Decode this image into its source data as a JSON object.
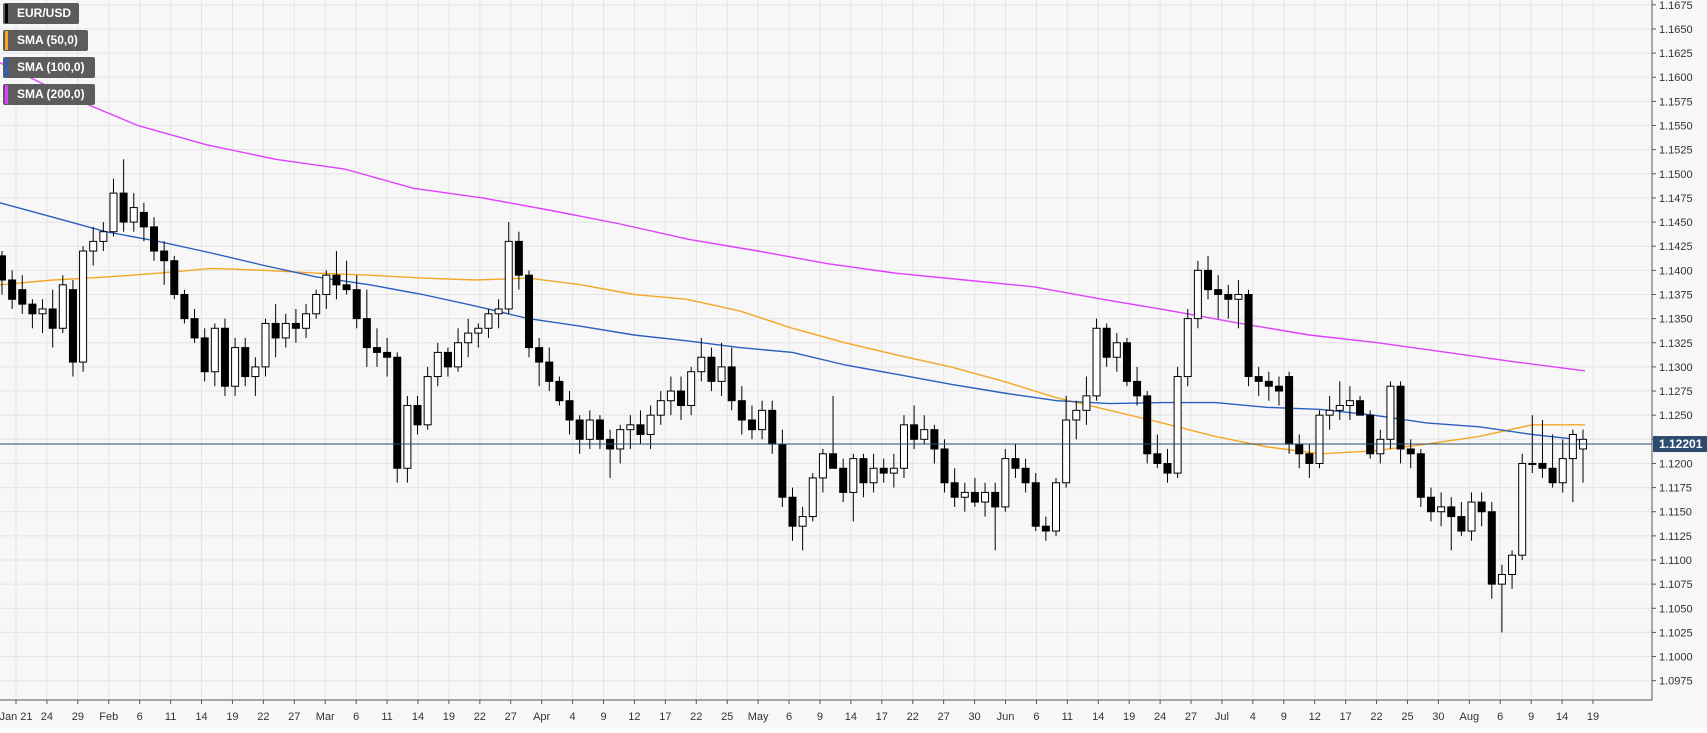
{
  "chart_data": {
    "type": "candlestick",
    "symbol": "EUR/USD",
    "price_label": "1.12201",
    "y_ticks": [
      "1.0975",
      "1.1000",
      "1.1025",
      "1.1050",
      "1.1075",
      "1.1100",
      "1.1125",
      "1.1150",
      "1.1175",
      "1.1200",
      "1.1225",
      "1.1250",
      "1.1275",
      "1.1300",
      "1.1325",
      "1.1350",
      "1.1375",
      "1.1400",
      "1.1425",
      "1.1450",
      "1.1475",
      "1.1500",
      "1.1525",
      "1.1550",
      "1.1575",
      "1.1600",
      "1.1625",
      "1.1650",
      "1.1675"
    ],
    "x_ticks": [
      "Jan 21",
      "24",
      "29",
      "Feb",
      "6",
      "11",
      "14",
      "19",
      "22",
      "27",
      "Mar",
      "6",
      "11",
      "14",
      "19",
      "22",
      "27",
      "Apr",
      "4",
      "9",
      "12",
      "17",
      "22",
      "25",
      "May",
      "6",
      "9",
      "14",
      "17",
      "22",
      "27",
      "30",
      "Jun",
      "6",
      "11",
      "14",
      "19",
      "24",
      "27",
      "Jul",
      "4",
      "9",
      "12",
      "17",
      "22",
      "25",
      "30",
      "Aug",
      "6",
      "9",
      "14",
      "19"
    ],
    "ylim": [
      1.0955,
      1.168
    ],
    "current_price": 1.12201,
    "grid": true,
    "legend": [
      {
        "label": "EUR/USD",
        "color": "#000000"
      },
      {
        "label": "SMA (50,0)",
        "color": "#f5a623"
      },
      {
        "label": "SMA (100,0)",
        "color": "#2a5fbf"
      },
      {
        "label": "SMA (200,0)",
        "color": "#e040fb"
      }
    ],
    "colors": {
      "up": "#ffffff",
      "down": "#000000",
      "sma50": "#f5a623",
      "sma100": "#2a5fbf",
      "sma200": "#e040fb",
      "price_line": "#2d4b6e"
    },
    "ohlc": [
      [
        1.1415,
        1.142,
        1.1375,
        1.139
      ],
      [
        1.139,
        1.14,
        1.136,
        1.137
      ],
      [
        1.138,
        1.1395,
        1.1355,
        1.1365
      ],
      [
        1.1365,
        1.137,
        1.134,
        1.1355
      ],
      [
        1.1355,
        1.137,
        1.1335,
        1.136
      ],
      [
        1.136,
        1.138,
        1.132,
        1.134
      ],
      [
        1.134,
        1.1395,
        1.1335,
        1.1385
      ],
      [
        1.138,
        1.139,
        1.129,
        1.1305
      ],
      [
        1.1305,
        1.1425,
        1.1295,
        1.142
      ],
      [
        1.142,
        1.1445,
        1.1405,
        1.143
      ],
      [
        1.143,
        1.145,
        1.142,
        1.144
      ],
      [
        1.144,
        1.1495,
        1.1435,
        1.148
      ],
      [
        1.148,
        1.1515,
        1.144,
        1.145
      ],
      [
        1.145,
        1.148,
        1.144,
        1.1465
      ],
      [
        1.146,
        1.147,
        1.143,
        1.1445
      ],
      [
        1.1445,
        1.1455,
        1.141,
        1.142
      ],
      [
        1.142,
        1.143,
        1.1385,
        1.141
      ],
      [
        1.141,
        1.1415,
        1.137,
        1.1375
      ],
      [
        1.1375,
        1.138,
        1.1345,
        1.135
      ],
      [
        1.135,
        1.136,
        1.1325,
        1.133
      ],
      [
        1.133,
        1.134,
        1.1285,
        1.1295
      ],
      [
        1.1295,
        1.1345,
        1.128,
        1.134
      ],
      [
        1.134,
        1.135,
        1.127,
        1.128
      ],
      [
        1.128,
        1.133,
        1.127,
        1.132
      ],
      [
        1.132,
        1.133,
        1.128,
        1.129
      ],
      [
        1.129,
        1.131,
        1.127,
        1.13
      ],
      [
        1.13,
        1.135,
        1.129,
        1.1345
      ],
      [
        1.1345,
        1.1365,
        1.131,
        1.133
      ],
      [
        1.133,
        1.1355,
        1.132,
        1.1345
      ],
      [
        1.1345,
        1.136,
        1.1325,
        1.134
      ],
      [
        1.134,
        1.1365,
        1.133,
        1.1355
      ],
      [
        1.1355,
        1.138,
        1.135,
        1.1375
      ],
      [
        1.1375,
        1.14,
        1.136,
        1.1395
      ],
      [
        1.1395,
        1.142,
        1.137,
        1.1385
      ],
      [
        1.1385,
        1.141,
        1.1375,
        1.138
      ],
      [
        1.138,
        1.1395,
        1.134,
        1.135
      ],
      [
        1.135,
        1.138,
        1.13,
        1.132
      ],
      [
        1.132,
        1.134,
        1.13,
        1.1315
      ],
      [
        1.1315,
        1.133,
        1.129,
        1.131
      ],
      [
        1.131,
        1.1315,
        1.118,
        1.1195
      ],
      [
        1.1195,
        1.127,
        1.118,
        1.126
      ],
      [
        1.126,
        1.127,
        1.123,
        1.124
      ],
      [
        1.124,
        1.13,
        1.1235,
        1.129
      ],
      [
        1.129,
        1.1325,
        1.128,
        1.1315
      ],
      [
        1.1315,
        1.132,
        1.129,
        1.13
      ],
      [
        1.13,
        1.134,
        1.1295,
        1.1325
      ],
      [
        1.1325,
        1.135,
        1.131,
        1.1335
      ],
      [
        1.1335,
        1.1345,
        1.132,
        1.134
      ],
      [
        1.134,
        1.136,
        1.133,
        1.1355
      ],
      [
        1.1355,
        1.137,
        1.134,
        1.136
      ],
      [
        1.136,
        1.145,
        1.1355,
        1.143
      ],
      [
        1.143,
        1.144,
        1.138,
        1.1395
      ],
      [
        1.1395,
        1.14,
        1.131,
        1.132
      ],
      [
        1.132,
        1.133,
        1.128,
        1.1305
      ],
      [
        1.1305,
        1.132,
        1.1275,
        1.1285
      ],
      [
        1.1285,
        1.129,
        1.126,
        1.1265
      ],
      [
        1.1265,
        1.1275,
        1.123,
        1.1245
      ],
      [
        1.1245,
        1.125,
        1.121,
        1.1225
      ],
      [
        1.1225,
        1.1255,
        1.1215,
        1.1245
      ],
      [
        1.1245,
        1.125,
        1.1215,
        1.1225
      ],
      [
        1.1225,
        1.1235,
        1.1185,
        1.1215
      ],
      [
        1.1215,
        1.124,
        1.12,
        1.1235
      ],
      [
        1.1235,
        1.125,
        1.1215,
        1.124
      ],
      [
        1.124,
        1.1255,
        1.122,
        1.123
      ],
      [
        1.123,
        1.126,
        1.1215,
        1.125
      ],
      [
        1.125,
        1.1275,
        1.124,
        1.1265
      ],
      [
        1.1265,
        1.129,
        1.125,
        1.1275
      ],
      [
        1.1275,
        1.129,
        1.1245,
        1.126
      ],
      [
        1.126,
        1.13,
        1.125,
        1.1295
      ],
      [
        1.1295,
        1.133,
        1.1285,
        1.131
      ],
      [
        1.131,
        1.132,
        1.1275,
        1.1285
      ],
      [
        1.1285,
        1.1325,
        1.127,
        1.13
      ],
      [
        1.13,
        1.132,
        1.1255,
        1.1265
      ],
      [
        1.1265,
        1.128,
        1.123,
        1.1245
      ],
      [
        1.1245,
        1.126,
        1.1225,
        1.1235
      ],
      [
        1.1235,
        1.1265,
        1.1225,
        1.1255
      ],
      [
        1.1255,
        1.1265,
        1.121,
        1.122
      ],
      [
        1.122,
        1.1235,
        1.1155,
        1.1165
      ],
      [
        1.1165,
        1.1175,
        1.112,
        1.1135
      ],
      [
        1.1135,
        1.1155,
        1.111,
        1.1145
      ],
      [
        1.1145,
        1.119,
        1.114,
        1.1185
      ],
      [
        1.1185,
        1.1215,
        1.117,
        1.121
      ],
      [
        1.121,
        1.127,
        1.1195,
        1.1195
      ],
      [
        1.1195,
        1.1205,
        1.116,
        1.117
      ],
      [
        1.117,
        1.121,
        1.114,
        1.1205
      ],
      [
        1.1205,
        1.121,
        1.1165,
        1.118
      ],
      [
        1.118,
        1.121,
        1.117,
        1.1195
      ],
      [
        1.1195,
        1.1205,
        1.118,
        1.119
      ],
      [
        1.119,
        1.121,
        1.1175,
        1.1195
      ],
      [
        1.1195,
        1.125,
        1.1185,
        1.124
      ],
      [
        1.124,
        1.126,
        1.1215,
        1.1225
      ],
      [
        1.1225,
        1.125,
        1.122,
        1.1235
      ],
      [
        1.1235,
        1.124,
        1.12,
        1.1215
      ],
      [
        1.1215,
        1.1225,
        1.117,
        1.118
      ],
      [
        1.118,
        1.1195,
        1.1155,
        1.1165
      ],
      [
        1.1165,
        1.118,
        1.115,
        1.117
      ],
      [
        1.117,
        1.1185,
        1.1155,
        1.116
      ],
      [
        1.116,
        1.118,
        1.1145,
        1.117
      ],
      [
        1.117,
        1.118,
        1.111,
        1.1155
      ],
      [
        1.1155,
        1.1215,
        1.115,
        1.1205
      ],
      [
        1.1205,
        1.122,
        1.1185,
        1.1195
      ],
      [
        1.1195,
        1.1205,
        1.117,
        1.118
      ],
      [
        1.118,
        1.119,
        1.113,
        1.1135
      ],
      [
        1.1135,
        1.1145,
        1.112,
        1.113
      ],
      [
        1.113,
        1.1185,
        1.1125,
        1.118
      ],
      [
        1.118,
        1.127,
        1.1175,
        1.1245
      ],
      [
        1.1245,
        1.1265,
        1.1225,
        1.1255
      ],
      [
        1.1255,
        1.129,
        1.124,
        1.127
      ],
      [
        1.127,
        1.135,
        1.1265,
        1.134
      ],
      [
        1.134,
        1.1345,
        1.13,
        1.131
      ],
      [
        1.131,
        1.1335,
        1.1295,
        1.1325
      ],
      [
        1.1325,
        1.133,
        1.128,
        1.1285
      ],
      [
        1.1285,
        1.13,
        1.126,
        1.127
      ],
      [
        1.127,
        1.1275,
        1.12,
        1.121
      ],
      [
        1.121,
        1.123,
        1.1195,
        1.12
      ],
      [
        1.12,
        1.1215,
        1.118,
        1.119
      ],
      [
        1.119,
        1.13,
        1.1185,
        1.129
      ],
      [
        1.129,
        1.136,
        1.128,
        1.135
      ],
      [
        1.135,
        1.141,
        1.134,
        1.14
      ],
      [
        1.14,
        1.1415,
        1.137,
        1.138
      ],
      [
        1.138,
        1.1395,
        1.135,
        1.1375
      ],
      [
        1.1375,
        1.1385,
        1.135,
        1.137
      ],
      [
        1.137,
        1.139,
        1.134,
        1.1375
      ],
      [
        1.1375,
        1.138,
        1.128,
        1.129
      ],
      [
        1.129,
        1.13,
        1.127,
        1.1285
      ],
      [
        1.1285,
        1.1295,
        1.1265,
        1.128
      ],
      [
        1.128,
        1.129,
        1.126,
        1.1275
      ],
      [
        1.129,
        1.1295,
        1.121,
        1.122
      ],
      [
        1.122,
        1.123,
        1.1195,
        1.121
      ],
      [
        1.121,
        1.122,
        1.1185,
        1.12
      ],
      [
        1.12,
        1.1255,
        1.1195,
        1.125
      ],
      [
        1.125,
        1.127,
        1.1235,
        1.1255
      ],
      [
        1.1255,
        1.1285,
        1.1245,
        1.126
      ],
      [
        1.126,
        1.128,
        1.1245,
        1.1265
      ],
      [
        1.1265,
        1.127,
        1.125,
        1.125
      ],
      [
        1.125,
        1.1255,
        1.1205,
        1.121
      ],
      [
        1.121,
        1.1235,
        1.12,
        1.1225
      ],
      [
        1.1225,
        1.1285,
        1.1215,
        1.128
      ],
      [
        1.128,
        1.1285,
        1.12,
        1.1215
      ],
      [
        1.1215,
        1.1225,
        1.1195,
        1.121
      ],
      [
        1.121,
        1.1215,
        1.1155,
        1.1165
      ],
      [
        1.1165,
        1.1175,
        1.114,
        1.115
      ],
      [
        1.115,
        1.117,
        1.1135,
        1.1155
      ],
      [
        1.1155,
        1.1165,
        1.111,
        1.1145
      ],
      [
        1.1145,
        1.116,
        1.1125,
        1.113
      ],
      [
        1.113,
        1.117,
        1.112,
        1.116
      ],
      [
        1.116,
        1.117,
        1.1135,
        1.115
      ],
      [
        1.115,
        1.116,
        1.106,
        1.1075
      ],
      [
        1.1075,
        1.1095,
        1.1025,
        1.1085
      ],
      [
        1.1085,
        1.111,
        1.107,
        1.1105
      ],
      [
        1.1105,
        1.121,
        1.11,
        1.12
      ],
      [
        1.12,
        1.125,
        1.119,
        1.12
      ],
      [
        1.12,
        1.1245,
        1.1185,
        1.1195
      ],
      [
        1.1195,
        1.123,
        1.1175,
        1.118
      ],
      [
        1.118,
        1.1225,
        1.117,
        1.1205
      ],
      [
        1.1205,
        1.1235,
        1.116,
        1.123
      ],
      [
        1.1215,
        1.1235,
        1.118,
        1.1225
      ]
    ],
    "sma50": [
      1.1385,
      1.139,
      1.1393,
      1.1397,
      1.1402,
      1.14,
      1.1397,
      1.1395,
      1.1392,
      1.139,
      1.1392,
      1.1385,
      1.1375,
      1.137,
      1.1358,
      1.134,
      1.1325,
      1.1312,
      1.13,
      1.1285,
      1.1268,
      1.1255,
      1.1242,
      1.1228,
      1.1217,
      1.121,
      1.1213,
      1.122,
      1.1228,
      1.124,
      1.124
    ],
    "sma100": [
      1.147,
      1.1455,
      1.144,
      1.143,
      1.1418,
      1.1405,
      1.1393,
      1.1385,
      1.1375,
      1.1363,
      1.135,
      1.1342,
      1.1333,
      1.1327,
      1.132,
      1.1315,
      1.1302,
      1.1292,
      1.1282,
      1.1273,
      1.1265,
      1.1262,
      1.1263,
      1.1263,
      1.1258,
      1.1256,
      1.125,
      1.1242,
      1.1238,
      1.123,
      1.1224
    ],
    "sma200": [
      1.1615,
      1.158,
      1.155,
      1.153,
      1.1515,
      1.1505,
      1.1485,
      1.1475,
      1.1462,
      1.1448,
      1.1432,
      1.142,
      1.1407,
      1.1397,
      1.139,
      1.1383,
      1.137,
      1.1358,
      1.1345,
      1.1333,
      1.1325,
      1.1315,
      1.1305,
      1.1296
    ]
  }
}
